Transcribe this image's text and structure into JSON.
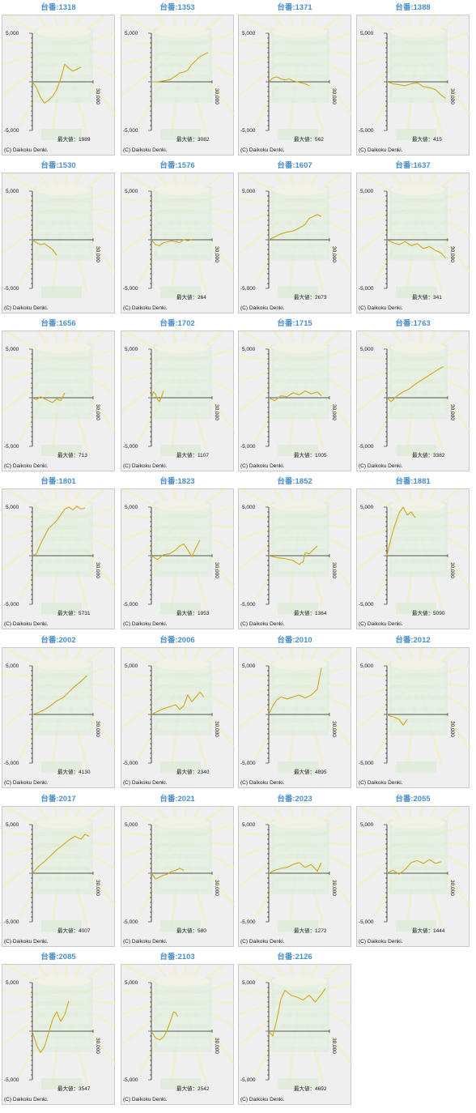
{
  "chart_common": {
    "ytick_labels": [
      "5,000",
      "-5,000"
    ],
    "xtick_label": "30,000",
    "max_label": "最大値",
    "copyright": "(C) Daikoku Denki.",
    "line_color": "#d4a817"
  },
  "chart_data": [
    {
      "type": "line",
      "title": "台番:1318",
      "max_text": "1989",
      "ylim": [
        -5000,
        5000
      ],
      "xlim": [
        0,
        30000
      ],
      "x": [
        0,
        2000,
        4000,
        6000,
        8000,
        10000,
        12000,
        14000,
        16000,
        18000,
        20000,
        22000,
        24000
      ],
      "y": [
        0,
        -600,
        -1600,
        -2200,
        -1900,
        -1500,
        -800,
        300,
        1800,
        1400,
        1100,
        1300,
        1500
      ]
    },
    {
      "type": "line",
      "title": "台番:1353",
      "max_text": "3082",
      "ylim": [
        -5000,
        5000
      ],
      "xlim": [
        0,
        30000
      ],
      "x": [
        0,
        3000,
        6000,
        9000,
        12000,
        14000,
        16000,
        18000,
        20000,
        22000,
        24000,
        26000,
        28000
      ],
      "y": [
        0,
        0,
        100,
        200,
        600,
        900,
        1000,
        1200,
        1800,
        2200,
        2600,
        2800,
        3000
      ]
    },
    {
      "type": "line",
      "title": "台番:1371",
      "max_text": "562",
      "ylim": [
        -5000,
        5000
      ],
      "xlim": [
        0,
        30000
      ],
      "x": [
        0,
        2000,
        4000,
        6000,
        8000,
        10000,
        12000,
        14000,
        16000,
        18000,
        20000
      ],
      "y": [
        0,
        400,
        500,
        300,
        200,
        300,
        100,
        0,
        -100,
        -200,
        -400
      ]
    },
    {
      "type": "line",
      "title": "台番:1388",
      "max_text": "415",
      "ylim": [
        -5000,
        5000
      ],
      "xlim": [
        0,
        30000
      ],
      "x": [
        0,
        3000,
        6000,
        9000,
        12000,
        15000,
        18000,
        21000,
        24000,
        27000,
        29000
      ],
      "y": [
        0,
        -200,
        -300,
        -400,
        -200,
        -100,
        -500,
        -600,
        -800,
        -1400,
        -1700
      ]
    },
    {
      "type": "line",
      "title": "台番:1530",
      "max_text": "",
      "ylim": [
        -5000,
        5000
      ],
      "xlim": [
        0,
        30000
      ],
      "x": [
        0,
        2000,
        4000,
        6000,
        8000,
        10000,
        12000
      ],
      "y": [
        0,
        -300,
        -500,
        -400,
        -700,
        -1000,
        -1600
      ]
    },
    {
      "type": "line",
      "title": "台番:1576",
      "max_text": "264",
      "ylim": [
        -5000,
        5000
      ],
      "xlim": [
        0,
        30000
      ],
      "x": [
        0,
        2000,
        4000,
        6000,
        8000,
        10000,
        12000,
        14000,
        16000,
        18000,
        20000
      ],
      "y": [
        0,
        -500,
        -600,
        -300,
        -200,
        -100,
        -200,
        -300,
        0,
        -100,
        0
      ]
    },
    {
      "type": "line",
      "title": "台番:1607",
      "max_text": "2673",
      "ylim": [
        -5000,
        5000
      ],
      "xlim": [
        0,
        30000
      ],
      "x": [
        0,
        3000,
        6000,
        9000,
        12000,
        15000,
        18000,
        20000,
        22000,
        24000,
        26000
      ],
      "y": [
        0,
        300,
        600,
        800,
        900,
        1200,
        1600,
        2200,
        2400,
        2600,
        2400
      ]
    },
    {
      "type": "line",
      "title": "台番:1637",
      "max_text": "341",
      "ylim": [
        -5000,
        5000
      ],
      "xlim": [
        0,
        30000
      ],
      "x": [
        0,
        3000,
        6000,
        9000,
        12000,
        15000,
        18000,
        21000,
        24000,
        27000,
        29000
      ],
      "y": [
        0,
        -300,
        -500,
        -200,
        -600,
        -400,
        -900,
        -700,
        -1100,
        -1400,
        -1900
      ]
    },
    {
      "type": "line",
      "title": "台番:1656",
      "max_text": "713",
      "ylim": [
        -5000,
        5000
      ],
      "xlim": [
        0,
        30000
      ],
      "x": [
        0,
        2000,
        4000,
        6000,
        8000,
        10000,
        12000,
        14000,
        16000
      ],
      "y": [
        0,
        -200,
        100,
        -100,
        -300,
        -500,
        -100,
        -300,
        500
      ]
    },
    {
      "type": "line",
      "title": "台番:1702",
      "max_text": "1107",
      "ylim": [
        -5000,
        5000
      ],
      "xlim": [
        0,
        30000
      ],
      "x": [
        0,
        1000,
        2000,
        3000,
        4000,
        5000,
        6000
      ],
      "y": [
        0,
        600,
        400,
        -200,
        -400,
        100,
        700
      ]
    },
    {
      "type": "line",
      "title": "台番:1715",
      "max_text": "1005",
      "ylim": [
        -5000,
        5000
      ],
      "xlim": [
        0,
        30000
      ],
      "x": [
        0,
        3000,
        6000,
        9000,
        12000,
        15000,
        18000,
        21000,
        24000,
        26000
      ],
      "y": [
        0,
        -300,
        200,
        100,
        500,
        300,
        700,
        400,
        600,
        200
      ]
    },
    {
      "type": "line",
      "title": "台番:1763",
      "max_text": "3382",
      "ylim": [
        -5000,
        5000
      ],
      "xlim": [
        0,
        30000
      ],
      "x": [
        0,
        2000,
        5000,
        8000,
        11000,
        14000,
        17000,
        20000,
        23000,
        26000,
        28000
      ],
      "y": [
        0,
        -400,
        200,
        600,
        900,
        1400,
        1800,
        2200,
        2600,
        3000,
        3200
      ]
    },
    {
      "type": "line",
      "title": "台番:1801",
      "max_text": "5731",
      "ylim": [
        -5000,
        5000
      ],
      "xlim": [
        0,
        30000
      ],
      "x": [
        0,
        2000,
        4000,
        6000,
        8000,
        10000,
        12000,
        14000,
        16000,
        18000,
        20000,
        22000,
        24000,
        26000
      ],
      "y": [
        0,
        200,
        1200,
        2000,
        2800,
        3200,
        3600,
        4200,
        4800,
        5000,
        4700,
        5100,
        4800,
        4900
      ]
    },
    {
      "type": "line",
      "title": "台番:1823",
      "max_text": "1953",
      "ylim": [
        -5000,
        5000
      ],
      "xlim": [
        0,
        30000
      ],
      "x": [
        0,
        3000,
        6000,
        9000,
        12000,
        14000,
        16000,
        18000,
        20000,
        22000,
        24000
      ],
      "y": [
        0,
        -400,
        100,
        200,
        600,
        1000,
        1200,
        600,
        -100,
        800,
        1600
      ]
    },
    {
      "type": "line",
      "title": "台番:1852",
      "max_text": "1364",
      "ylim": [
        -5000,
        5000
      ],
      "xlim": [
        0,
        30000
      ],
      "x": [
        0,
        4000,
        8000,
        12000,
        15000,
        17000,
        18000,
        20000,
        22000,
        24000
      ],
      "y": [
        0,
        -200,
        -300,
        -500,
        -900,
        -600,
        300,
        200,
        600,
        1000
      ]
    },
    {
      "type": "line",
      "title": "台番:1881",
      "max_text": "5090",
      "ylim": [
        -5000,
        5000
      ],
      "xlim": [
        0,
        30000
      ],
      "x": [
        0,
        2000,
        4000,
        6000,
        8000,
        10000,
        12000,
        14000
      ],
      "y": [
        0,
        1800,
        3200,
        4400,
        5000,
        4200,
        4500,
        3900
      ]
    },
    {
      "type": "line",
      "title": "台番:2002",
      "max_text": "4130",
      "ylim": [
        -5000,
        5000
      ],
      "xlim": [
        0,
        30000
      ],
      "x": [
        0,
        3000,
        6000,
        9000,
        12000,
        15000,
        18000,
        21000,
        24000,
        27000
      ],
      "y": [
        0,
        200,
        500,
        900,
        1400,
        1700,
        2300,
        2900,
        3400,
        4000
      ]
    },
    {
      "type": "line",
      "title": "台番:2006",
      "max_text": "2340",
      "ylim": [
        -5000,
        5000
      ],
      "xlim": [
        0,
        30000
      ],
      "x": [
        0,
        3000,
        6000,
        9000,
        12000,
        14000,
        16000,
        18000,
        20000,
        22000,
        24000,
        26000
      ],
      "y": [
        0,
        300,
        600,
        800,
        1000,
        500,
        900,
        2000,
        1300,
        1800,
        2300,
        1800
      ]
    },
    {
      "type": "line",
      "title": "台番:2010",
      "max_text": "4895",
      "ylim": [
        -5000,
        5000
      ],
      "xlim": [
        0,
        30000
      ],
      "x": [
        0,
        2000,
        4000,
        6000,
        9000,
        12000,
        15000,
        18000,
        21000,
        24000,
        26000
      ],
      "y": [
        0,
        900,
        1500,
        1800,
        1600,
        1800,
        2000,
        1700,
        2000,
        2600,
        4800
      ]
    },
    {
      "type": "line",
      "title": "台番:2012",
      "max_text": "",
      "ylim": [
        -5000,
        5000
      ],
      "xlim": [
        0,
        30000
      ],
      "x": [
        0,
        2000,
        4000,
        6000,
        8000,
        10000
      ],
      "y": [
        0,
        -200,
        -300,
        -500,
        -1100,
        -500
      ]
    },
    {
      "type": "line",
      "title": "台番:2017",
      "max_text": "4007",
      "ylim": [
        -5000,
        5000
      ],
      "xlim": [
        0,
        30000
      ],
      "x": [
        0,
        3000,
        6000,
        9000,
        12000,
        15000,
        18000,
        21000,
        24000,
        26000,
        28000
      ],
      "y": [
        0,
        700,
        1200,
        1800,
        2400,
        2900,
        3400,
        3800,
        3500,
        4000,
        3800
      ]
    },
    {
      "type": "line",
      "title": "台番:2021",
      "max_text": "580",
      "ylim": [
        -5000,
        5000
      ],
      "xlim": [
        0,
        30000
      ],
      "x": [
        0,
        2000,
        4000,
        6000,
        8000,
        10000,
        12000,
        14000,
        16000
      ],
      "y": [
        0,
        -600,
        -400,
        -200,
        -100,
        200,
        300,
        500,
        300
      ]
    },
    {
      "type": "line",
      "title": "台番:2023",
      "max_text": "1272",
      "ylim": [
        -5000,
        5000
      ],
      "xlim": [
        0,
        30000
      ],
      "x": [
        0,
        3000,
        6000,
        9000,
        12000,
        15000,
        18000,
        21000,
        24000,
        26000
      ],
      "y": [
        0,
        300,
        500,
        600,
        900,
        1100,
        600,
        900,
        200,
        1100
      ]
    },
    {
      "type": "line",
      "title": "台番:2055",
      "max_text": "1444",
      "ylim": [
        -5000,
        5000
      ],
      "xlim": [
        0,
        30000
      ],
      "x": [
        0,
        3000,
        6000,
        9000,
        12000,
        15000,
        18000,
        21000,
        24000,
        27000
      ],
      "y": [
        0,
        300,
        -100,
        400,
        1100,
        1300,
        1000,
        1400,
        1000,
        1200
      ]
    },
    {
      "type": "line",
      "title": "台番:2085",
      "max_text": "3547",
      "ylim": [
        -5000,
        5000
      ],
      "xlim": [
        0,
        30000
      ],
      "x": [
        0,
        2000,
        4000,
        6000,
        8000,
        10000,
        12000,
        14000,
        16000,
        18000
      ],
      "y": [
        0,
        -1400,
        -2200,
        -1600,
        -200,
        1200,
        2000,
        1000,
        1700,
        3100
      ]
    },
    {
      "type": "line",
      "title": "台番:2103",
      "max_text": "2542",
      "ylim": [
        -5000,
        5000
      ],
      "xlim": [
        0,
        30000
      ],
      "x": [
        0,
        2000,
        4000,
        6000,
        8000,
        10000,
        11000,
        12000,
        13000
      ],
      "y": [
        0,
        -700,
        -900,
        -600,
        200,
        1400,
        2000,
        1900,
        1500
      ]
    },
    {
      "type": "line",
      "title": "台番:2126",
      "max_text": "4692",
      "ylim": [
        -5000,
        5000
      ],
      "xlim": [
        0,
        30000
      ],
      "x": [
        0,
        2000,
        4000,
        6000,
        8000,
        11000,
        14000,
        17000,
        20000,
        23000,
        26000,
        28000
      ],
      "y": [
        0,
        -500,
        1200,
        3300,
        4200,
        3700,
        3500,
        3200,
        3700,
        3000,
        3800,
        4400
      ]
    }
  ]
}
